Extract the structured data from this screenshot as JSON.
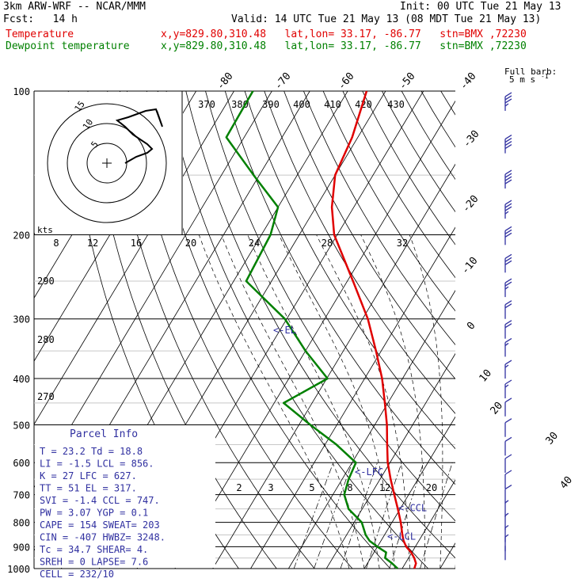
{
  "header": {
    "model": "3km ARW-WRF -- NCAR/MMM",
    "init": "Init: 00 UTC Tue 21 May 13",
    "fcst": "Fcst:   14 h",
    "valid": "Valid: 14 UTC Tue 21 May 13 (08 MDT Tue 21 May 13)",
    "temp_label": "Temperature",
    "temp_loc": "x,y=829.80,310.48   lat,lon= 33.17, -86.77   stn=BMX ,72230",
    "dew_label": "Dewpoint temperature",
    "dew_loc": "x,y=829.80,310.48   lat,lon= 33.17, -86.77   stn=BMX ,72230"
  },
  "colors": {
    "temperature": "#e00000",
    "dewpoint": "#008000",
    "text": "#000000",
    "annotation": "#3030a0",
    "barbs": "#3030a0"
  },
  "chart_data": [
    {
      "type": "line",
      "chart_kind": "skew-T log-p",
      "y_scale": "log",
      "pressure_ticks": [
        "100",
        "200",
        "300",
        "400",
        "500",
        "600",
        "700",
        "800",
        "900",
        "1000"
      ],
      "temp_ticks_top": [
        "-80",
        "-70",
        "-60",
        "-50",
        "-40"
      ],
      "temp_ticks_right": [
        "-30",
        "-20",
        "-10",
        "0",
        "10",
        "20",
        "30",
        "40"
      ],
      "theta_labels": [
        "370",
        "380",
        "390",
        "400",
        "410",
        "420",
        "430",
        "440"
      ],
      "theta_side_labels": [
        "290",
        "280",
        "270"
      ],
      "mixing_ratio_top": [
        "8",
        "12",
        "16",
        "20",
        "24",
        "28",
        "32"
      ],
      "mixing_ratio_bottom": [
        "2",
        "3",
        "5",
        "8",
        "12",
        "20"
      ],
      "series": [
        {
          "name": "Temperature",
          "points": [
            [
              1000,
              23.2
            ],
            [
              975,
              22.8
            ],
            [
              950,
              21.5
            ],
            [
              925,
              19.8
            ],
            [
              900,
              17.6
            ],
            [
              875,
              16.0
            ],
            [
              850,
              14.7
            ],
            [
              800,
              12.3
            ],
            [
              750,
              9.4
            ],
            [
              700,
              6.2
            ],
            [
              650,
              2.8
            ],
            [
              600,
              -0.6
            ],
            [
              550,
              -3.6
            ],
            [
              500,
              -6.8
            ],
            [
              450,
              -10.8
            ],
            [
              400,
              -15.4
            ],
            [
              350,
              -21.4
            ],
            [
              300,
              -28.6
            ],
            [
              250,
              -38.5
            ],
            [
              200,
              -50.8
            ],
            [
              175,
              -55.8
            ],
            [
              150,
              -60.0
            ],
            [
              125,
              -61.5
            ],
            [
              100,
              -65.0
            ]
          ]
        },
        {
          "name": "Dewpoint temperature",
          "points": [
            [
              1000,
              18.8
            ],
            [
              975,
              16.5
            ],
            [
              950,
              13.8
            ],
            [
              925,
              13.2
            ],
            [
              900,
              10.0
            ],
            [
              875,
              7.0
            ],
            [
              850,
              5.0
            ],
            [
              800,
              2.0
            ],
            [
              750,
              -3.6
            ],
            [
              700,
              -7.0
            ],
            [
              650,
              -8.3
            ],
            [
              600,
              -9.0
            ],
            [
              550,
              -17.0
            ],
            [
              500,
              -27.0
            ],
            [
              450,
              -37.5
            ],
            [
              400,
              -29.8
            ],
            [
              350,
              -40.0
            ],
            [
              300,
              -50.5
            ],
            [
              250,
              -66.7
            ],
            [
              200,
              -67.6
            ],
            [
              175,
              -70.0
            ],
            [
              150,
              -81.5
            ],
            [
              125,
              -94.7
            ],
            [
              100,
              -95.0
            ]
          ]
        }
      ],
      "levels": [
        {
          "label": "<-EL",
          "pressure": 317
        },
        {
          "label": "<-LFC",
          "pressure": 627
        },
        {
          "label": "<-CCL",
          "pressure": 747
        },
        {
          "label": "<-LCL",
          "pressure": 856
        }
      ]
    },
    {
      "type": "line",
      "chart_kind": "hodograph",
      "unit_label": "kts",
      "ring_labels": [
        "5",
        "10",
        "15"
      ]
    }
  ],
  "wind_barbs": {
    "title": "Full barb:",
    "subtitle": "5 m s",
    "superscript": "-1",
    "barbs": [
      {
        "pressure": 110,
        "dir": 270,
        "speed": 18
      },
      {
        "pressure": 135,
        "dir": 270,
        "speed": 20
      },
      {
        "pressure": 160,
        "dir": 268,
        "speed": 20
      },
      {
        "pressure": 185,
        "dir": 268,
        "speed": 18
      },
      {
        "pressure": 210,
        "dir": 265,
        "speed": 17
      },
      {
        "pressure": 240,
        "dir": 262,
        "speed": 15
      },
      {
        "pressure": 270,
        "dir": 260,
        "speed": 13
      },
      {
        "pressure": 300,
        "dir": 258,
        "speed": 12
      },
      {
        "pressure": 330,
        "dir": 255,
        "speed": 10
      },
      {
        "pressure": 360,
        "dir": 255,
        "speed": 9
      },
      {
        "pressure": 400,
        "dir": 250,
        "speed": 8
      },
      {
        "pressure": 440,
        "dir": 250,
        "speed": 8
      },
      {
        "pressure": 480,
        "dir": 245,
        "speed": 7
      },
      {
        "pressure": 530,
        "dir": 240,
        "speed": 7
      },
      {
        "pressure": 580,
        "dir": 235,
        "speed": 6
      },
      {
        "pressure": 630,
        "dir": 230,
        "speed": 6
      },
      {
        "pressure": 680,
        "dir": 225,
        "speed": 5
      },
      {
        "pressure": 730,
        "dir": 220,
        "speed": 5
      },
      {
        "pressure": 780,
        "dir": 215,
        "speed": 4
      },
      {
        "pressure": 830,
        "dir": 210,
        "speed": 4
      },
      {
        "pressure": 880,
        "dir": 200,
        "speed": 3
      },
      {
        "pressure": 920,
        "dir": 190,
        "speed": 3
      },
      {
        "pressure": 960,
        "dir": 180,
        "speed": 2
      }
    ]
  },
  "parcel_info": {
    "title": "Parcel Info",
    "rows": [
      "T  =   23.2  Td =  18.8",
      "LI =   -1.5  LCL =  856.",
      "K  =     27  LFC =  627.",
      "TT =     51  EL  =  317.",
      "SVI =  -1.4  CCL =  747.",
      "PW =   3.07  YGP =   0.1",
      "CAPE =  154  SWEAT=  203",
      "CIN =  -407  HWBZ= 3248.",
      "Tc =   34.7  SHEAR=    4.",
      "SREH =    0  LAPSE=  7.6",
      "CELL = 232/10"
    ]
  }
}
